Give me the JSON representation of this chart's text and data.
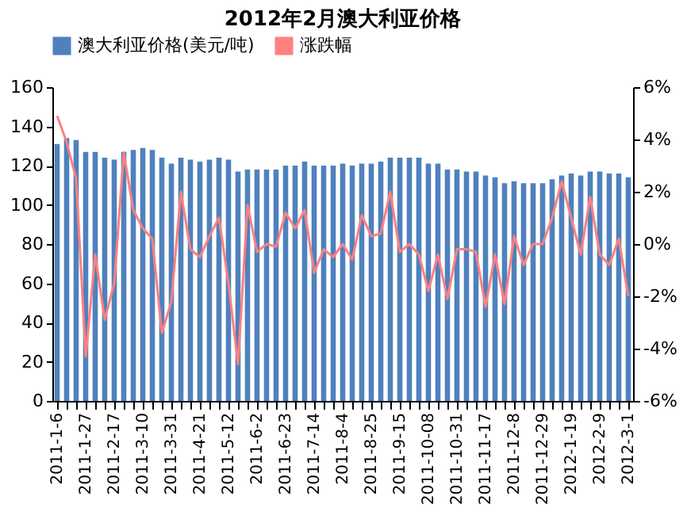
{
  "chart_data": {
    "type": "bar",
    "title": "2012年2月澳大利亚价格",
    "categories": [
      "2011-1-6",
      null,
      null,
      "2011-1-27",
      null,
      null,
      "2011-2-17",
      null,
      null,
      "2011-3-10",
      null,
      null,
      "2011-3-31",
      null,
      null,
      "2011-4-21",
      null,
      null,
      "2011-5-12",
      null,
      null,
      "2011-6-2",
      null,
      null,
      "2011-6-23",
      null,
      null,
      "2011-7-14",
      null,
      null,
      "2011-8-4",
      null,
      null,
      "2011-8-25",
      null,
      null,
      "2011-9-15",
      null,
      null,
      "2011-10-08",
      null,
      null,
      "2011-10-31",
      null,
      null,
      "2011-11-17",
      null,
      null,
      "2011-12-8",
      null,
      null,
      "2011-12-29",
      null,
      null,
      "2012-1-19",
      null,
      null,
      "2012-2-9",
      null,
      null,
      "2012-3-1"
    ],
    "series": [
      {
        "name": "澳大利亚价格(美元/吨)",
        "color": "#4f81bd",
        "values": [
          131,
          134,
          133,
          127,
          127,
          124,
          123,
          127,
          128,
          129,
          128,
          124,
          121,
          124,
          123,
          122,
          123,
          124,
          123,
          117,
          118,
          118,
          118,
          118,
          120,
          120,
          122,
          120,
          120,
          120,
          121,
          120,
          121,
          121,
          122,
          124,
          124,
          124,
          124,
          121,
          121,
          118,
          118,
          117,
          117,
          115,
          114,
          111,
          112,
          111,
          111,
          111,
          113,
          115,
          116,
          115,
          117,
          117,
          116,
          116,
          114
        ]
      },
      {
        "name": "涨跌幅",
        "type": "line",
        "axis": "y2",
        "color": "#ff8080",
        "values": [
          4.9,
          3.9,
          2.5,
          -4.3,
          -0.4,
          -2.9,
          -1.5,
          3.5,
          1.3,
          0.6,
          0.2,
          -3.4,
          -2.2,
          2.0,
          -0.2,
          -0.5,
          0.3,
          1.0,
          -1.5,
          -4.6,
          1.5,
          -0.3,
          0.0,
          -0.1,
          1.2,
          0.6,
          1.3,
          -1.1,
          -0.2,
          -0.5,
          0.0,
          -0.6,
          1.1,
          0.3,
          0.4,
          2.0,
          -0.3,
          0.0,
          -0.4,
          -1.8,
          -0.4,
          -2.1,
          -0.2,
          -0.2,
          -0.3,
          -2.4,
          -0.4,
          -2.3,
          0.3,
          -0.8,
          0.0,
          0.0,
          1.0,
          2.4,
          1.0,
          -0.4,
          1.8,
          -0.4,
          -0.8,
          0.2,
          -2.0
        ]
      }
    ],
    "ylim": [
      0,
      160
    ],
    "yticks": [
      0,
      20,
      40,
      60,
      80,
      100,
      120,
      140,
      160
    ],
    "y2lim": [
      -6,
      6
    ],
    "y2ticks": [
      {
        "value": -6,
        "label": "-6%"
      },
      {
        "value": -4,
        "label": "-4%"
      },
      {
        "value": -2,
        "label": "-2%"
      },
      {
        "value": 0,
        "label": "0%"
      },
      {
        "value": 2,
        "label": "2%"
      },
      {
        "value": 4,
        "label": "4%"
      },
      {
        "value": 6,
        "label": "6%"
      }
    ],
    "legend": "top",
    "grid": false,
    "marker": "none",
    "line_style": "solid"
  }
}
